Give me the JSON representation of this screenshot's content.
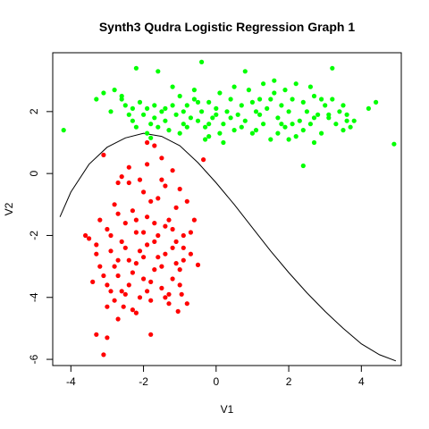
{
  "chart_data": {
    "type": "scatter",
    "title": "Synth3 Qudra Logistic Regression Graph 1",
    "xlabel": "V1",
    "ylabel": "V2",
    "xlim": [
      -4.5,
      5.1
    ],
    "ylim": [
      -6.2,
      3.9
    ],
    "x_ticks": [
      -4,
      -2,
      0,
      2,
      4
    ],
    "y_ticks": [
      -6,
      -4,
      -2,
      0,
      2
    ],
    "grid": false,
    "legend": "none",
    "colors": {
      "series_a": "#00ff00",
      "series_b": "#ff0000",
      "boundary": "#000000"
    },
    "series": [
      {
        "marker": "point",
        "color": "#00ff00",
        "points": [
          [
            -4.2,
            1.4
          ],
          [
            -3.3,
            2.4
          ],
          [
            -3.1,
            2.6
          ],
          [
            -2.8,
            2.7
          ],
          [
            -2.2,
            3.4
          ],
          [
            -1.6,
            3.3
          ],
          [
            -0.4,
            3.6
          ],
          [
            0.8,
            3.3
          ],
          [
            1.6,
            3.0
          ],
          [
            3.2,
            3.4
          ],
          [
            -2.6,
            2.5
          ],
          [
            -2.5,
            2.2
          ],
          [
            -2.4,
            1.9
          ],
          [
            -2.3,
            1.7
          ],
          [
            -2.2,
            1.5
          ],
          [
            -2.1,
            2.3
          ],
          [
            -2.0,
            1.9
          ],
          [
            -1.9,
            2.1
          ],
          [
            -1.8,
            1.6
          ],
          [
            -1.7,
            1.8
          ],
          [
            -1.6,
            1.5
          ],
          [
            -1.5,
            2.0
          ],
          [
            -1.4,
            1.7
          ],
          [
            -1.3,
            1.4
          ],
          [
            -1.2,
            2.2
          ],
          [
            -1.1,
            1.9
          ],
          [
            -1.0,
            2.5
          ],
          [
            -0.9,
            1.6
          ],
          [
            -0.8,
            2.2
          ],
          [
            -0.7,
            1.8
          ],
          [
            -0.6,
            2.4
          ],
          [
            -0.5,
            1.7
          ],
          [
            -0.4,
            2.0
          ],
          [
            -0.3,
            1.5
          ],
          [
            -0.2,
            2.3
          ],
          [
            -0.1,
            1.8
          ],
          [
            0.0,
            2.1
          ],
          [
            0.1,
            2.6
          ],
          [
            0.2,
            1.6
          ],
          [
            0.3,
            2.0
          ],
          [
            0.4,
            2.4
          ],
          [
            0.5,
            1.4
          ],
          [
            0.6,
            1.9
          ],
          [
            0.7,
            2.2
          ],
          [
            0.8,
            1.7
          ],
          [
            0.9,
            2.7
          ],
          [
            1.0,
            1.3
          ],
          [
            1.1,
            2.0
          ],
          [
            1.2,
            2.4
          ],
          [
            1.3,
            1.6
          ],
          [
            1.4,
            2.1
          ],
          [
            1.5,
            1.1
          ],
          [
            1.6,
            2.6
          ],
          [
            1.7,
            1.8
          ],
          [
            1.8,
            2.2
          ],
          [
            1.9,
            1.5
          ],
          [
            2.0,
            2.0
          ],
          [
            2.1,
            2.4
          ],
          [
            2.2,
            1.2
          ],
          [
            2.3,
            1.7
          ],
          [
            2.4,
            2.3
          ],
          [
            2.5,
            2.0
          ],
          [
            2.6,
            1.6
          ],
          [
            2.7,
            2.5
          ],
          [
            2.8,
            1.9
          ],
          [
            2.9,
            1.3
          ],
          [
            3.0,
            2.2
          ],
          [
            3.1,
            1.8
          ],
          [
            3.2,
            2.4
          ],
          [
            3.3,
            1.6
          ],
          [
            3.4,
            2.0
          ],
          [
            3.5,
            1.4
          ],
          [
            3.6,
            1.9
          ],
          [
            3.7,
            1.5
          ],
          [
            4.2,
            2.1
          ],
          [
            4.4,
            2.3
          ],
          [
            4.9,
            0.95
          ],
          [
            2.4,
            0.25
          ],
          [
            0.2,
            1.0
          ],
          [
            -0.2,
            1.2
          ],
          [
            -1.8,
            1.15
          ],
          [
            -2.9,
            2.0
          ],
          [
            -1.2,
            2.8
          ],
          [
            0.5,
            2.8
          ],
          [
            1.3,
            2.9
          ],
          [
            2.6,
            2.8
          ],
          [
            -0.6,
            2.7
          ],
          [
            1.9,
            2.7
          ],
          [
            3.8,
            1.7
          ],
          [
            2.2,
            2.9
          ],
          [
            -2.3,
            2.1
          ],
          [
            -1.9,
            1.3
          ],
          [
            -1.0,
            1.3
          ],
          [
            0.1,
            1.3
          ],
          [
            1.7,
            1.3
          ],
          [
            2.1,
            1.6
          ],
          [
            2.7,
            1.0
          ],
          [
            1.2,
            1.9
          ],
          [
            0.7,
            1.5
          ],
          [
            -0.5,
            2.3
          ],
          [
            -1.4,
            2.1
          ],
          [
            -0.9,
            2.0
          ],
          [
            1.5,
            2.4
          ],
          [
            2.9,
            2.4
          ],
          [
            3.5,
            2.2
          ],
          [
            3.1,
            1.9
          ],
          [
            0.4,
            1.8
          ],
          [
            -0.2,
            1.6
          ],
          [
            1.0,
            2.3
          ],
          [
            2.4,
            1.4
          ],
          [
            -2.6,
            2.4
          ],
          [
            -1.7,
            2.2
          ],
          [
            -0.8,
            1.5
          ],
          [
            0.0,
            1.9
          ],
          [
            1.8,
            1.6
          ],
          [
            3.6,
            1.7
          ],
          [
            2.0,
            1.1
          ],
          [
            1.1,
            1.4
          ],
          [
            -0.3,
            1.1
          ],
          [
            2.7,
            1.8
          ]
        ]
      },
      {
        "marker": "point",
        "color": "#ff0000",
        "points": [
          [
            -3.5,
            -2.1
          ],
          [
            -3.4,
            -3.5
          ],
          [
            -3.3,
            -2.6
          ],
          [
            -3.2,
            -1.5
          ],
          [
            -3.1,
            -3.3
          ],
          [
            -3.0,
            -4.3
          ],
          [
            -2.9,
            -2.0
          ],
          [
            -2.8,
            -3.0
          ],
          [
            -2.7,
            -1.3
          ],
          [
            -2.6,
            -3.8
          ],
          [
            -2.5,
            -2.4
          ],
          [
            -2.4,
            -0.3
          ],
          [
            -2.3,
            -3.2
          ],
          [
            -2.2,
            -1.9
          ],
          [
            -2.1,
            -4.0
          ],
          [
            -2.0,
            -2.7
          ],
          [
            -1.9,
            -1.4
          ],
          [
            -1.8,
            -3.5
          ],
          [
            -1.7,
            -2.2
          ],
          [
            -1.6,
            -0.8
          ],
          [
            -1.5,
            -3.0
          ],
          [
            -1.4,
            -1.7
          ],
          [
            -1.3,
            -3.9
          ],
          [
            -1.2,
            -2.4
          ],
          [
            -1.1,
            -1.1
          ],
          [
            -1.0,
            -3.1
          ],
          [
            -0.9,
            -2.0
          ],
          [
            -0.8,
            -0.9
          ],
          [
            -0.7,
            -2.6
          ],
          [
            -0.6,
            -1.5
          ],
          [
            -3.1,
            0.6
          ],
          [
            -2.4,
            0.2
          ],
          [
            -1.9,
            0.3
          ],
          [
            -1.5,
            0.5
          ],
          [
            -1.2,
            0.1
          ],
          [
            -2.7,
            -0.3
          ],
          [
            -2.0,
            -0.6
          ],
          [
            -1.5,
            -0.2
          ],
          [
            -1.0,
            -0.5
          ],
          [
            -2.8,
            -1.0
          ],
          [
            -2.3,
            -1.2
          ],
          [
            -1.8,
            -0.9
          ],
          [
            -1.3,
            -1.5
          ],
          [
            -3.0,
            -1.8
          ],
          [
            -2.5,
            -1.6
          ],
          [
            -2.0,
            -1.9
          ],
          [
            -1.6,
            -2.0
          ],
          [
            -1.1,
            -2.2
          ],
          [
            -2.9,
            -2.5
          ],
          [
            -2.4,
            -2.8
          ],
          [
            -1.9,
            -2.3
          ],
          [
            -1.4,
            -2.6
          ],
          [
            -0.9,
            -2.8
          ],
          [
            -3.2,
            -3.0
          ],
          [
            -2.7,
            -3.3
          ],
          [
            -2.2,
            -2.9
          ],
          [
            -1.7,
            -3.1
          ],
          [
            -1.2,
            -3.4
          ],
          [
            -3.0,
            -3.6
          ],
          [
            -2.5,
            -3.9
          ],
          [
            -2.0,
            -3.4
          ],
          [
            -1.5,
            -3.7
          ],
          [
            -1.0,
            -3.6
          ],
          [
            -2.8,
            -4.1
          ],
          [
            -2.3,
            -4.4
          ],
          [
            -1.8,
            -4.1
          ],
          [
            -1.3,
            -4.2
          ],
          [
            -2.7,
            -4.7
          ],
          [
            -2.2,
            -4.5
          ],
          [
            -0.8,
            -4.2
          ],
          [
            -3.3,
            -5.2
          ],
          [
            -3.0,
            -5.3
          ],
          [
            -1.8,
            -5.2
          ],
          [
            -3.1,
            -5.85
          ],
          [
            -0.5,
            -2.95
          ],
          [
            -0.35,
            0.45
          ],
          [
            -3.6,
            -2.0
          ],
          [
            -1.05,
            -4.45
          ],
          [
            -2.6,
            -0.1
          ],
          [
            -1.7,
            0.9
          ],
          [
            -1.9,
            1.0
          ],
          [
            -2.1,
            -0.2
          ],
          [
            -1.4,
            -0.4
          ],
          [
            -2.6,
            -2.2
          ],
          [
            -2.1,
            -2.5
          ],
          [
            -1.6,
            -2.7
          ],
          [
            -1.1,
            -2.9
          ],
          [
            -2.9,
            -3.8
          ],
          [
            -2.4,
            -3.6
          ],
          [
            -1.9,
            -3.8
          ],
          [
            -1.4,
            -4.0
          ],
          [
            -0.9,
            -2.4
          ],
          [
            -0.7,
            -1.9
          ],
          [
            -1.2,
            -1.8
          ],
          [
            -1.7,
            -1.6
          ],
          [
            -2.2,
            -1.5
          ],
          [
            -2.7,
            -2.8
          ],
          [
            -3.3,
            -2.3
          ],
          [
            -0.95,
            -3.9
          ],
          [
            -2.55,
            -4.3
          ]
        ]
      }
    ],
    "boundary": {
      "type": "line",
      "color": "#000000",
      "points": [
        [
          -4.3,
          -1.4
        ],
        [
          -4.0,
          -0.6
        ],
        [
          -3.5,
          0.3
        ],
        [
          -3.0,
          0.85
        ],
        [
          -2.5,
          1.15
        ],
        [
          -2.0,
          1.3
        ],
        [
          -1.5,
          1.2
        ],
        [
          -1.0,
          0.9
        ],
        [
          -0.5,
          0.35
        ],
        [
          0.0,
          -0.3
        ],
        [
          0.5,
          -1.0
        ],
        [
          1.0,
          -1.75
        ],
        [
          1.5,
          -2.5
        ],
        [
          2.0,
          -3.2
        ],
        [
          2.5,
          -3.85
        ],
        [
          3.0,
          -4.45
        ],
        [
          3.5,
          -5.0
        ],
        [
          4.0,
          -5.5
        ],
        [
          4.5,
          -5.85
        ],
        [
          4.95,
          -6.05
        ]
      ]
    }
  }
}
